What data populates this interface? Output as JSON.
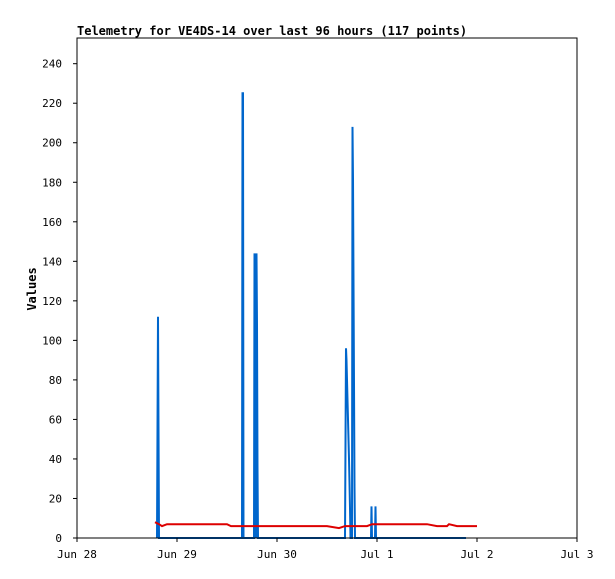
{
  "chart_data": {
    "type": "line",
    "title": "Telemetry for VE4DS-14 over last 96 hours (117 points)",
    "xlabel": "",
    "ylabel": "Values",
    "x_ticks": [
      "Jun 28",
      "Jun 29",
      "Jun 30",
      "Jul 1",
      "Jul 2",
      "Jul 3"
    ],
    "y_ticks": [
      0,
      20,
      40,
      60,
      80,
      100,
      120,
      140,
      160,
      180,
      200,
      220,
      240
    ],
    "xlim_days": [
      0,
      5
    ],
    "ylim": [
      0,
      240
    ],
    "grid": false,
    "legend": "none",
    "series": [
      {
        "color": "#0066cc",
        "points": [
          [
            0.8,
            0
          ],
          [
            0.805,
            56
          ],
          [
            0.81,
            112
          ],
          [
            0.815,
            56
          ],
          [
            0.82,
            0
          ],
          [
            1.65,
            0
          ],
          [
            1.655,
            225
          ],
          [
            1.66,
            225
          ],
          [
            1.665,
            0
          ],
          [
            1.77,
            0
          ],
          [
            1.775,
            144
          ],
          [
            1.78,
            108
          ],
          [
            1.785,
            36
          ],
          [
            1.79,
            0
          ],
          [
            1.795,
            144
          ],
          [
            1.8,
            108
          ],
          [
            1.805,
            36
          ],
          [
            1.81,
            0
          ],
          [
            2.68,
            0
          ],
          [
            2.685,
            48
          ],
          [
            2.69,
            96
          ],
          [
            2.695,
            90
          ],
          [
            2.7,
            80
          ],
          [
            2.705,
            70
          ],
          [
            2.71,
            60
          ],
          [
            2.715,
            50
          ],
          [
            2.72,
            40
          ],
          [
            2.725,
            28
          ],
          [
            2.73,
            15
          ],
          [
            2.735,
            0
          ],
          [
            2.75,
            0
          ],
          [
            2.755,
            208
          ],
          [
            2.76,
            182
          ],
          [
            2.765,
            130
          ],
          [
            2.77,
            78
          ],
          [
            2.775,
            26
          ],
          [
            2.78,
            0
          ],
          [
            2.94,
            0
          ],
          [
            2.945,
            16
          ],
          [
            2.95,
            0
          ],
          [
            2.98,
            0
          ],
          [
            2.985,
            16
          ],
          [
            2.99,
            0
          ],
          [
            3.88,
            0
          ],
          [
            3.89,
            0
          ]
        ]
      },
      {
        "color": "#dd0000",
        "points": [
          [
            0.78,
            8
          ],
          [
            0.82,
            7
          ],
          [
            0.85,
            6
          ],
          [
            0.9,
            7
          ],
          [
            1.0,
            7
          ],
          [
            1.2,
            7
          ],
          [
            1.4,
            7
          ],
          [
            1.5,
            7
          ],
          [
            1.54,
            6
          ],
          [
            1.6,
            6
          ],
          [
            2.0,
            6
          ],
          [
            2.5,
            6
          ],
          [
            2.62,
            5
          ],
          [
            2.68,
            6
          ],
          [
            2.8,
            6
          ],
          [
            2.9,
            6
          ],
          [
            2.95,
            7
          ],
          [
            3.2,
            7
          ],
          [
            3.5,
            7
          ],
          [
            3.6,
            6
          ],
          [
            3.7,
            6
          ],
          [
            3.72,
            7
          ],
          [
            3.8,
            6
          ],
          [
            4.0,
            6
          ]
        ]
      }
    ]
  }
}
